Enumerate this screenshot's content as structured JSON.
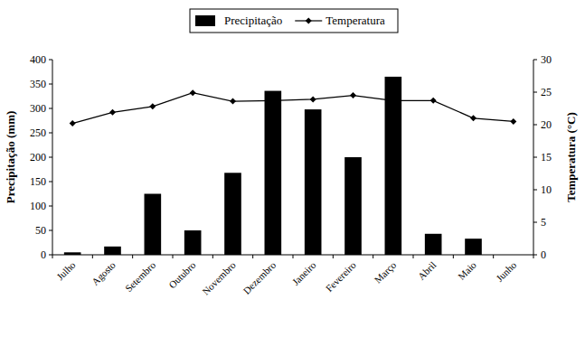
{
  "chart_data": {
    "type": "bar",
    "categories": [
      "Julho",
      "Agosto",
      "Setembro",
      "Outubro",
      "Novembro",
      "Dezembro",
      "Janeiro",
      "Fevereiro",
      "Março",
      "Abril",
      "Maio",
      "Junho"
    ],
    "series": [
      {
        "name": "Precipitação",
        "type": "bar",
        "color": "#000000",
        "values": [
          5,
          17,
          125,
          50,
          168,
          336,
          298,
          200,
          365,
          43,
          33,
          0
        ]
      },
      {
        "name": "Temperatura",
        "type": "line",
        "axis": "y2",
        "color": "#000000",
        "marker": "diamond",
        "line_style": "solid",
        "values": [
          20.2,
          21.9,
          22.8,
          24.9,
          23.6,
          23.7,
          23.9,
          24.5,
          23.7,
          23.7,
          21.0,
          20.5
        ]
      }
    ],
    "y_label": "Precipitação (mm)",
    "y2_label": "Temperatura (°C)",
    "ylim": [
      0,
      400
    ],
    "yticks": [
      0,
      50,
      100,
      150,
      200,
      250,
      300,
      350,
      400
    ],
    "y2lim": [
      0,
      30
    ],
    "y2ticks": [
      0,
      5,
      10,
      15,
      20,
      25,
      30
    ],
    "legend": "top",
    "grid": false
  }
}
